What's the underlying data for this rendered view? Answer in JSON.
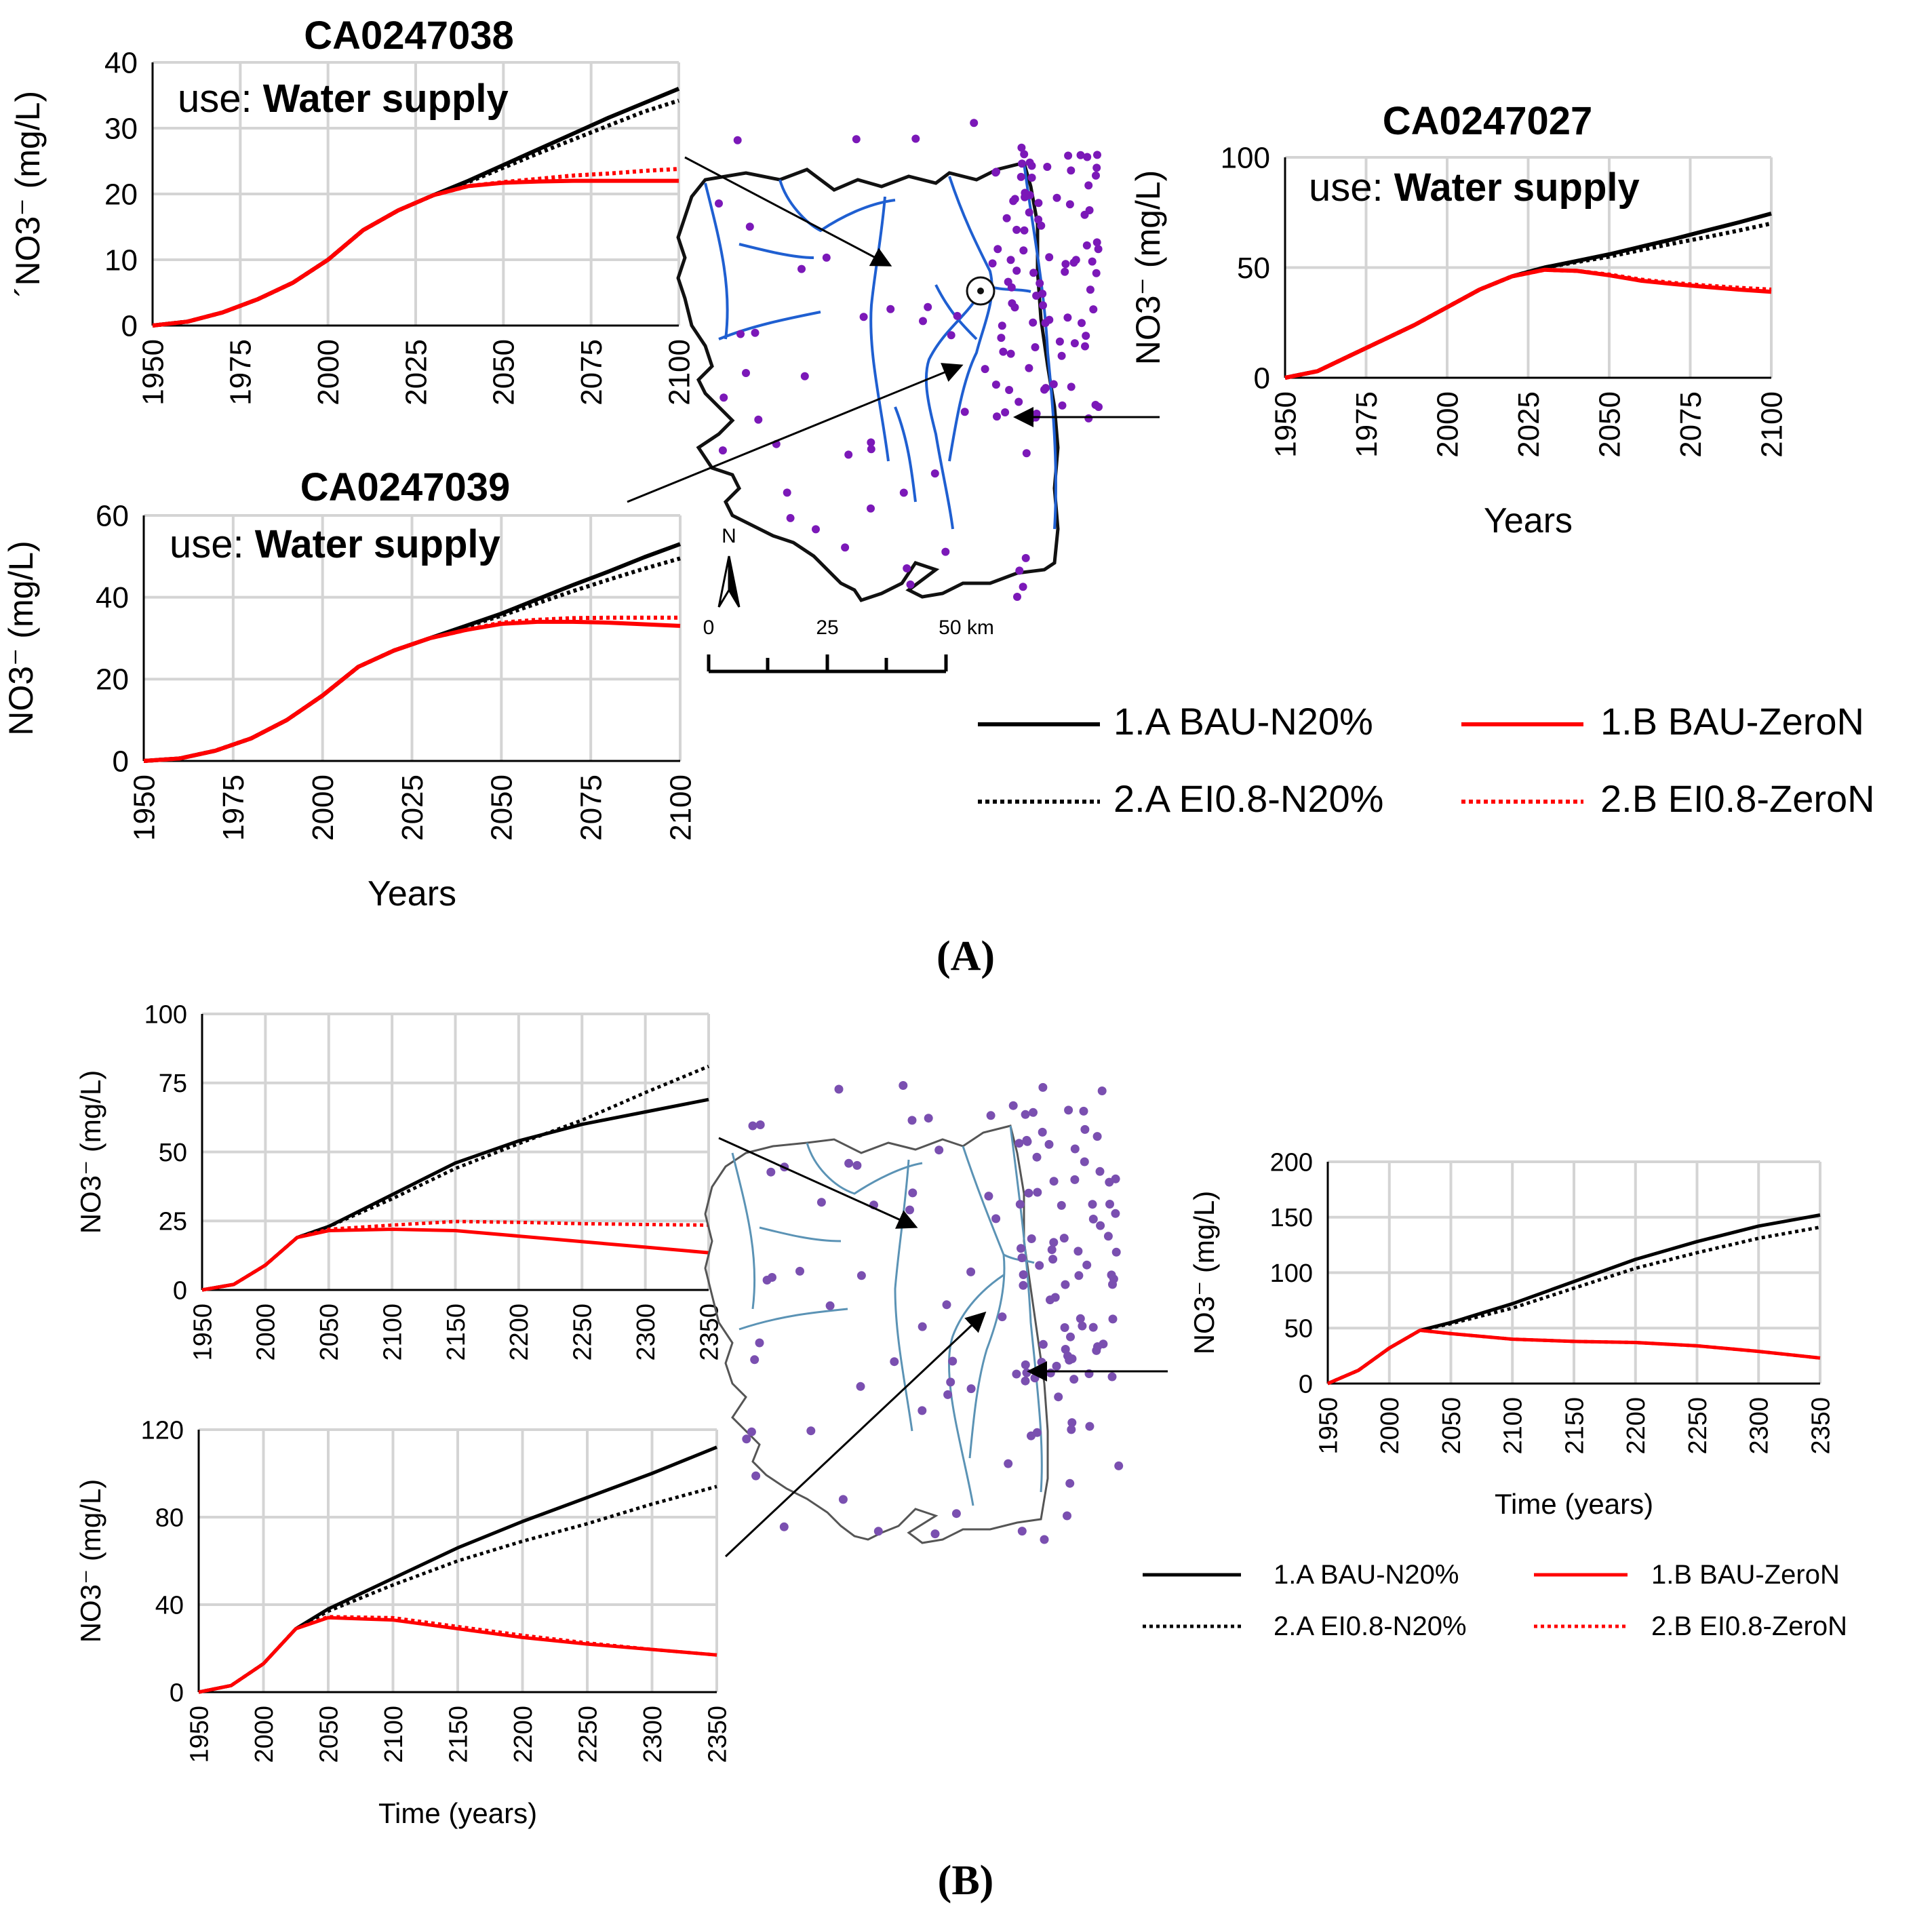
{
  "chart_data": [
    {
      "panel": "A",
      "type": "line",
      "title": "CA0247038",
      "subtitle_prefix": "use: ",
      "subtitle_bold": "Water supply",
      "xlabel": "",
      "ylabel": "´NO3⁻ (mg/L)",
      "ylim": [
        0,
        40
      ],
      "xlim": [
        1950,
        2100
      ],
      "yticks": [
        0,
        10,
        20,
        30,
        40
      ],
      "xticks": [
        1950,
        1975,
        2000,
        2025,
        2050,
        2075,
        2100
      ],
      "series": [
        {
          "name": "1.A BAU-N20%",
          "x": [
            1950,
            1960,
            1970,
            1980,
            1990,
            2000,
            2010,
            2020,
            2030,
            2040,
            2050,
            2060,
            2070,
            2080,
            2090,
            2100
          ],
          "y": [
            0,
            0.6,
            2,
            4,
            6.5,
            10,
            14.5,
            17.5,
            19.8,
            22,
            24.4,
            26.8,
            29.2,
            31.6,
            33.8,
            36
          ]
        },
        {
          "name": "2.A EI0.8-N20%",
          "x": [
            1950,
            1960,
            1970,
            1980,
            1990,
            2000,
            2010,
            2020,
            2030,
            2040,
            2050,
            2060,
            2070,
            2080,
            2090,
            2100
          ],
          "y": [
            0,
            0.6,
            2,
            4,
            6.5,
            10,
            14.5,
            17.5,
            19.8,
            21.8,
            24,
            26.2,
            28.3,
            30.4,
            32.5,
            34.2
          ]
        },
        {
          "name": "1.B BAU-ZeroN",
          "x": [
            1950,
            1960,
            1970,
            1980,
            1990,
            2000,
            2010,
            2020,
            2030,
            2040,
            2050,
            2060,
            2070,
            2080,
            2090,
            2100
          ],
          "y": [
            0,
            0.6,
            2,
            4,
            6.5,
            10,
            14.5,
            17.5,
            19.8,
            21.2,
            21.7,
            21.9,
            22,
            22,
            22,
            22
          ]
        },
        {
          "name": "2.B EI0.8-ZeroN",
          "x": [
            1950,
            1960,
            1970,
            1980,
            1990,
            2000,
            2010,
            2020,
            2030,
            2040,
            2050,
            2060,
            2070,
            2080,
            2090,
            2100
          ],
          "y": [
            0,
            0.6,
            2,
            4,
            6.5,
            10,
            14.5,
            17.5,
            19.8,
            21.2,
            21.8,
            22.3,
            22.8,
            23.1,
            23.5,
            23.8
          ]
        }
      ]
    },
    {
      "panel": "A",
      "type": "line",
      "title": "CA0247039",
      "subtitle_prefix": "use: ",
      "subtitle_bold": "Water supply",
      "xlabel": "Years",
      "ylabel": "NO3⁻ (mg/L)",
      "ylim": [
        0,
        60
      ],
      "xlim": [
        1950,
        2100
      ],
      "yticks": [
        0,
        20,
        40,
        60
      ],
      "xticks": [
        1950,
        1975,
        2000,
        2025,
        2050,
        2075,
        2100
      ],
      "series": [
        {
          "name": "1.A BAU-N20%",
          "x": [
            1950,
            1960,
            1970,
            1980,
            1990,
            2000,
            2010,
            2020,
            2030,
            2040,
            2050,
            2060,
            2070,
            2080,
            2090,
            2100
          ],
          "y": [
            0,
            0.6,
            2.5,
            5.5,
            10,
            16,
            23,
            27,
            30,
            33,
            36,
            39.5,
            43,
            46.3,
            49.8,
            53
          ]
        },
        {
          "name": "2.A EI0.8-N20%",
          "x": [
            1950,
            1960,
            1970,
            1980,
            1990,
            2000,
            2010,
            2020,
            2030,
            2040,
            2050,
            2060,
            2070,
            2080,
            2090,
            2100
          ],
          "y": [
            0,
            0.6,
            2.5,
            5.5,
            10,
            16,
            23,
            27,
            30,
            32.8,
            35.5,
            38.5,
            41.5,
            44.3,
            47,
            49.5
          ]
        },
        {
          "name": "1.B BAU-ZeroN",
          "x": [
            1950,
            1960,
            1970,
            1980,
            1990,
            2000,
            2010,
            2020,
            2030,
            2040,
            2050,
            2060,
            2070,
            2080,
            2090,
            2100
          ],
          "y": [
            0,
            0.6,
            2.5,
            5.5,
            10,
            16,
            23,
            27,
            30,
            32,
            33.5,
            34,
            34,
            33.8,
            33.4,
            33
          ]
        },
        {
          "name": "2.B EI0.8-ZeroN",
          "x": [
            1950,
            1960,
            1970,
            1980,
            1990,
            2000,
            2010,
            2020,
            2030,
            2040,
            2050,
            2060,
            2070,
            2080,
            2090,
            2100
          ],
          "y": [
            0,
            0.6,
            2.5,
            5.5,
            10,
            16,
            23,
            27,
            30,
            32,
            33.8,
            34.5,
            34.9,
            35,
            35,
            35
          ]
        }
      ]
    },
    {
      "panel": "A",
      "type": "line",
      "title": "CA0247027",
      "subtitle_prefix": "use: ",
      "subtitle_bold": "Water supply",
      "xlabel": "Years",
      "ylabel": "NO3⁻ (mg/L)",
      "ylim": [
        0,
        100
      ],
      "xlim": [
        1950,
        2100
      ],
      "yticks": [
        0,
        50,
        100
      ],
      "xticks": [
        1950,
        1975,
        2000,
        2025,
        2050,
        2075,
        2100
      ],
      "series": [
        {
          "name": "1.A BAU-N20%",
          "x": [
            1950,
            1960,
            1970,
            1980,
            1990,
            2000,
            2010,
            2020,
            2030,
            2040,
            2050,
            2060,
            2070,
            2080,
            2090,
            2100
          ],
          "y": [
            0,
            3,
            10,
            17,
            24,
            32,
            40,
            46,
            50,
            53,
            56,
            59.5,
            63,
            66.8,
            70.5,
            74.5
          ]
        },
        {
          "name": "2.A EI0.8-N20%",
          "x": [
            1950,
            1960,
            1970,
            1980,
            1990,
            2000,
            2010,
            2020,
            2030,
            2040,
            2050,
            2060,
            2070,
            2080,
            2090,
            2100
          ],
          "y": [
            0,
            3,
            10,
            17,
            24,
            32,
            40,
            46,
            50,
            52.5,
            55,
            58,
            61,
            63.8,
            66.8,
            70
          ]
        },
        {
          "name": "1.B BAU-ZeroN",
          "x": [
            1950,
            1960,
            1970,
            1980,
            1990,
            2000,
            2010,
            2020,
            2030,
            2040,
            2050,
            2060,
            2070,
            2080,
            2090,
            2100
          ],
          "y": [
            0,
            3,
            10,
            17,
            24,
            32,
            40,
            46,
            49,
            48.5,
            46.5,
            44,
            42.5,
            41.2,
            40,
            39
          ]
        },
        {
          "name": "2.B EI0.8-ZeroN",
          "x": [
            1950,
            1960,
            1970,
            1980,
            1990,
            2000,
            2010,
            2020,
            2030,
            2040,
            2050,
            2060,
            2070,
            2080,
            2090,
            2100
          ],
          "y": [
            0,
            3,
            10,
            17,
            24,
            32,
            40,
            46,
            49,
            48.5,
            46.8,
            44.5,
            43,
            41.8,
            40.8,
            40
          ]
        }
      ]
    },
    {
      "panel": "B",
      "type": "line",
      "title": "",
      "xlabel": "",
      "ylabel": "NO3⁻ (mg/L)",
      "ylim": [
        0,
        100
      ],
      "xlim": [
        1950,
        2350
      ],
      "yticks": [
        0,
        25,
        50,
        75,
        100
      ],
      "xticks": [
        1950,
        2000,
        2050,
        2100,
        2150,
        2200,
        2250,
        2300,
        2350
      ],
      "series": [
        {
          "name": "1.A BAU-N20%",
          "x": [
            1950,
            1975,
            2000,
            2025,
            2050,
            2100,
            2150,
            2200,
            2250,
            2300,
            2350
          ],
          "y": [
            0,
            2,
            9,
            19,
            23,
            34.5,
            46,
            54,
            60,
            64.5,
            69
          ]
        },
        {
          "name": "2.A EI0.8-N20%",
          "x": [
            1950,
            1975,
            2000,
            2025,
            2050,
            2100,
            2150,
            2200,
            2250,
            2300,
            2350
          ],
          "y": [
            0,
            2,
            9,
            19,
            23,
            33,
            44,
            53,
            61.5,
            71.5,
            81
          ]
        },
        {
          "name": "1.B BAU-ZeroN",
          "x": [
            1950,
            1975,
            2000,
            2025,
            2050,
            2100,
            2150,
            2200,
            2250,
            2300,
            2350
          ],
          "y": [
            0,
            2,
            9,
            19,
            21.5,
            22,
            21.5,
            19.5,
            17.5,
            15.5,
            13.5
          ]
        },
        {
          "name": "2.B EI0.8-ZeroN",
          "x": [
            1950,
            1975,
            2000,
            2025,
            2050,
            2100,
            2150,
            2200,
            2250,
            2300,
            2350
          ],
          "y": [
            0,
            2,
            9,
            19,
            22,
            23.5,
            24.8,
            24.5,
            24,
            23.7,
            23.5
          ]
        }
      ]
    },
    {
      "panel": "B",
      "type": "line",
      "title": "",
      "xlabel": "Time (years)",
      "ylabel": "NO3⁻ (mg/L)",
      "ylim": [
        0,
        120
      ],
      "xlim": [
        1950,
        2350
      ],
      "yticks": [
        0,
        40,
        80,
        120
      ],
      "xticks": [
        1950,
        2000,
        2050,
        2100,
        2150,
        2200,
        2250,
        2300,
        2350
      ],
      "series": [
        {
          "name": "1.A BAU-N20%",
          "x": [
            1950,
            1975,
            2000,
            2025,
            2050,
            2100,
            2150,
            2200,
            2250,
            2300,
            2350
          ],
          "y": [
            0,
            3,
            13,
            29,
            38,
            52,
            66,
            78,
            89,
            100,
            112
          ]
        },
        {
          "name": "2.A EI0.8-N20%",
          "x": [
            1950,
            1975,
            2000,
            2025,
            2050,
            2100,
            2150,
            2200,
            2250,
            2300,
            2350
          ],
          "y": [
            0,
            3,
            13,
            29,
            37,
            49,
            60,
            69,
            77,
            86,
            94
          ]
        },
        {
          "name": "1.B BAU-ZeroN",
          "x": [
            1950,
            1975,
            2000,
            2025,
            2050,
            2100,
            2150,
            2200,
            2250,
            2300,
            2350
          ],
          "y": [
            0,
            3,
            13,
            29,
            34,
            33,
            29,
            25,
            22,
            19.5,
            17
          ]
        },
        {
          "name": "2.B EI0.8-ZeroN",
          "x": [
            1950,
            1975,
            2000,
            2025,
            2050,
            2100,
            2150,
            2200,
            2250,
            2300,
            2350
          ],
          "y": [
            0,
            3,
            13,
            29,
            34.5,
            34,
            30,
            26,
            22.5,
            19.5,
            17
          ]
        }
      ]
    },
    {
      "panel": "B",
      "type": "line",
      "title": "",
      "xlabel": "Time (years)",
      "ylabel": "NO3⁻ (mg/L)",
      "ylim": [
        0,
        200
      ],
      "xlim": [
        1950,
        2350
      ],
      "yticks": [
        0,
        50,
        100,
        150,
        200
      ],
      "xticks": [
        1950,
        2000,
        2050,
        2100,
        2150,
        2200,
        2250,
        2300,
        2350
      ],
      "series": [
        {
          "name": "1.A BAU-N20%",
          "x": [
            1950,
            1975,
            2000,
            2025,
            2050,
            2100,
            2150,
            2200,
            2250,
            2300,
            2350
          ],
          "y": [
            0,
            12,
            32,
            48,
            55,
            72,
            92,
            112,
            128,
            142,
            152
          ]
        },
        {
          "name": "2.A EI0.8-N20%",
          "x": [
            1950,
            1975,
            2000,
            2025,
            2050,
            2100,
            2150,
            2200,
            2250,
            2300,
            2350
          ],
          "y": [
            0,
            12,
            32,
            48,
            54,
            68,
            86,
            104,
            118,
            131,
            141
          ]
        },
        {
          "name": "1.B BAU-ZeroN",
          "x": [
            1950,
            1975,
            2000,
            2025,
            2050,
            2100,
            2150,
            2200,
            2250,
            2300,
            2350
          ],
          "y": [
            0,
            12,
            32,
            48,
            45,
            40,
            38,
            37,
            34,
            29,
            23
          ]
        },
        {
          "name": "2.B EI0.8-ZeroN",
          "x": [
            1950,
            1975,
            2000,
            2025,
            2050,
            2100,
            2150,
            2200,
            2250,
            2300,
            2350
          ],
          "y": [
            0,
            12,
            32,
            48,
            45,
            40,
            38,
            37,
            34,
            29,
            23
          ]
        }
      ]
    }
  ],
  "legend": {
    "a1": "1.A BAU-N20%",
    "a2": "2.A EI0.8-N20%",
    "b1": "1.B BAU-ZeroN",
    "b2": "2.B EI0.8-ZeroN"
  },
  "map": {
    "north": "N",
    "scale_0": "0",
    "scale_25": "25",
    "scale_50": "50 km"
  },
  "panel_labels": {
    "a": "(A)",
    "b": "(B)"
  },
  "colors": {
    "bau_n20": "#000000",
    "zero_n": "#ff0000",
    "river_a": "#1f5fd1",
    "river_b": "#5b93b5",
    "well_a": "#7b18b8",
    "well_b": "#7a4fb0",
    "grid": "#d4d4d4"
  }
}
